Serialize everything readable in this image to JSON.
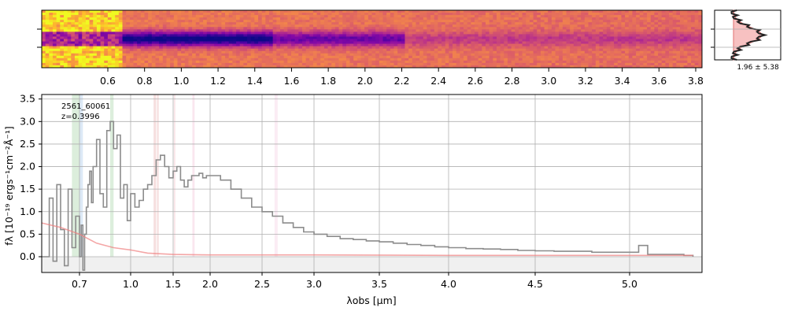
{
  "chart_data": [
    {
      "type": "heatmap",
      "panel": "2d-spectrum",
      "x_ticks": [
        "0.6",
        "0.8",
        "1.0",
        "1.2",
        "1.4",
        "1.6",
        "1.8",
        "2.0",
        "2.2",
        "2.4",
        "2.6",
        "2.8",
        "3.0",
        "3.2",
        "3.4",
        "3.6",
        "3.8"
      ],
      "colormap": "plasma",
      "colors": {
        "low": "#0d0887",
        "mid": "#cc4778",
        "high": "#f0f921"
      }
    },
    {
      "type": "area",
      "panel": "spatial-profile",
      "label": "1.96 ± 5.38",
      "fill_color": "#f4a6a6",
      "line_color": "#222222"
    },
    {
      "type": "line",
      "panel": "1d-spectrum",
      "xlabel": "λobs [μm]",
      "ylabel": "fλ [10⁻¹⁹ ergs⁻¹cm⁻²Å⁻¹]",
      "xlim": [
        0.6,
        5.4
      ],
      "ylim": [
        -0.35,
        3.6
      ],
      "x_ticks": [
        "0.7",
        "1.0",
        "1.5",
        "2.0",
        "2.5",
        "3.0",
        "3.5",
        "4.0",
        "4.5",
        "5.0"
      ],
      "y_ticks": [
        "0.0",
        "0.5",
        "1.0",
        "1.5",
        "2.0",
        "2.5",
        "3.0",
        "3.5"
      ],
      "grid": true,
      "annotations": [
        "2561_60061",
        "z=0.3996"
      ],
      "series": [
        {
          "role": "flux",
          "color": "#8c8c8c",
          "x": [
            0.6,
            0.62,
            0.63,
            0.64,
            0.65,
            0.66,
            0.67,
            0.68,
            0.69,
            0.7,
            0.71,
            0.72,
            0.73,
            0.74,
            0.75,
            0.76,
            0.77,
            0.78,
            0.8,
            0.82,
            0.84,
            0.86,
            0.88,
            0.9,
            0.92,
            0.94,
            0.96,
            0.98,
            1.0,
            1.05,
            1.1,
            1.15,
            1.2,
            1.25,
            1.3,
            1.35,
            1.4,
            1.45,
            1.5,
            1.55,
            1.6,
            1.65,
            1.7,
            1.75,
            1.8,
            1.85,
            1.9,
            1.95,
            2.0,
            2.1,
            2.2,
            2.3,
            2.4,
            2.5,
            2.6,
            2.7,
            2.8,
            2.9,
            3.0,
            3.1,
            3.2,
            3.3,
            3.4,
            3.5,
            3.6,
            3.7,
            3.8,
            3.9,
            4.0,
            4.1,
            4.2,
            4.3,
            4.4,
            4.5,
            4.6,
            4.7,
            4.8,
            4.9,
            5.0,
            5.05,
            5.1,
            5.2,
            5.3,
            5.35
          ],
          "y": [
            0.0,
            1.3,
            -0.1,
            1.6,
            0.6,
            -0.2,
            1.5,
            0.2,
            0.9,
            0.0,
            0.7,
            -0.3,
            0.5,
            1.1,
            1.6,
            1.9,
            1.2,
            2.0,
            2.6,
            1.4,
            1.1,
            2.8,
            3.0,
            2.4,
            2.7,
            1.3,
            1.6,
            0.8,
            1.4,
            1.1,
            1.25,
            1.5,
            1.6,
            1.8,
            2.15,
            2.25,
            2.0,
            1.75,
            1.9,
            2.0,
            1.7,
            1.55,
            1.7,
            1.8,
            1.8,
            1.85,
            1.75,
            1.8,
            1.8,
            1.7,
            1.5,
            1.3,
            1.1,
            1.0,
            0.9,
            0.75,
            0.65,
            0.55,
            0.5,
            0.45,
            0.4,
            0.38,
            0.35,
            0.33,
            0.3,
            0.27,
            0.25,
            0.22,
            0.2,
            0.18,
            0.17,
            0.16,
            0.14,
            0.13,
            0.12,
            0.12,
            0.1,
            0.1,
            0.1,
            0.25,
            0.05,
            0.05,
            0.03,
            0.0
          ]
        },
        {
          "role": "model",
          "color": "#f08080",
          "x": [
            0.6,
            0.65,
            0.7,
            0.8,
            0.9,
            1.0,
            1.2,
            1.5,
            2.0,
            2.5,
            3.0,
            4.0,
            5.0,
            5.35
          ],
          "y": [
            0.75,
            0.65,
            0.5,
            0.3,
            0.2,
            0.15,
            0.08,
            0.05,
            0.04,
            0.04,
            0.04,
            0.03,
            0.03,
            0.03
          ]
        }
      ],
      "bands": [
        {
          "x0": 0.68,
          "x1": 0.7,
          "color": "#a8d5a8"
        },
        {
          "x0": 0.7,
          "x1": 0.72,
          "color": "#a8c8e8"
        },
        {
          "x0": 0.88,
          "x1": 0.9,
          "color": "#a8d5a8"
        },
        {
          "x0": 1.27,
          "x1": 1.3,
          "color": "#e8b0b0"
        },
        {
          "x0": 1.31,
          "x1": 1.33,
          "color": "#e8b0b0"
        },
        {
          "x0": 1.51,
          "x1": 1.53,
          "color": "#f2c0c8"
        },
        {
          "x0": 1.76,
          "x1": 1.79,
          "color": "#f2c0d8"
        },
        {
          "x0": 2.62,
          "x1": 2.65,
          "color": "#f6d0e4"
        }
      ]
    }
  ]
}
